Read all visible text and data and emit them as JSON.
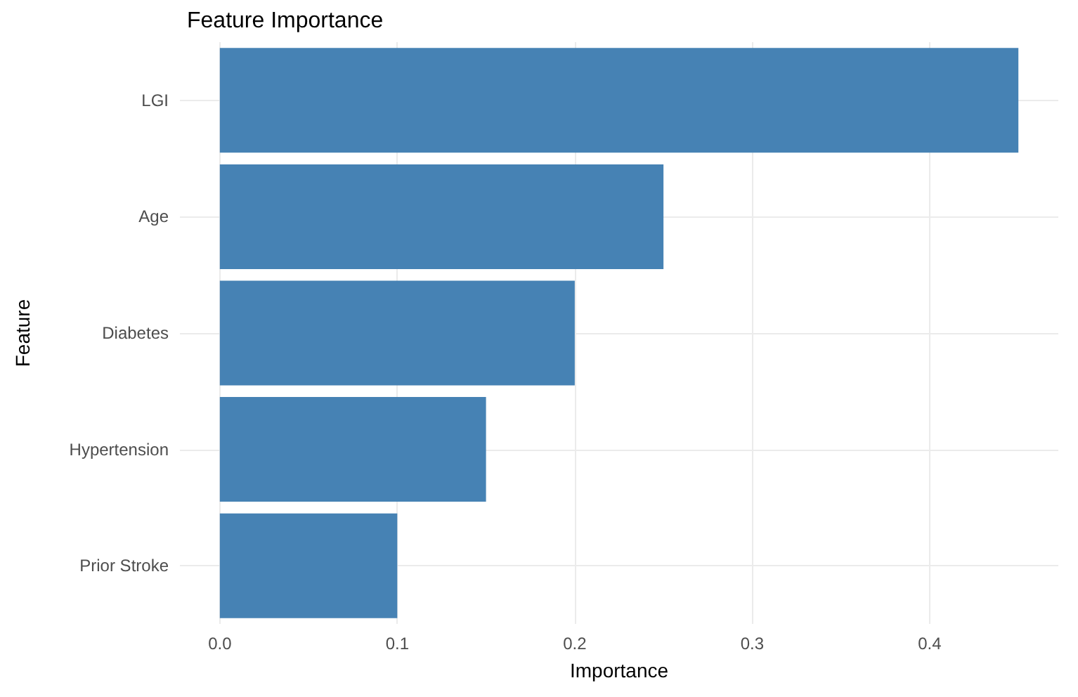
{
  "chart_data": {
    "type": "bar",
    "orientation": "horizontal",
    "title": "Feature Importance",
    "xlabel": "Importance",
    "ylabel": "Feature",
    "categories": [
      "LGI",
      "Age",
      "Diabetes",
      "Hypertension",
      "Prior Stroke"
    ],
    "values": [
      0.45,
      0.25,
      0.2,
      0.15,
      0.1
    ],
    "color": "#4682b4",
    "xlim": [
      -0.0225,
      0.4725
    ],
    "xticks": [
      {
        "value": 0,
        "label": "0.0"
      },
      {
        "value": 0.1,
        "label": "0.1"
      },
      {
        "value": 0.2,
        "label": "0.2"
      },
      {
        "value": 0.3,
        "label": "0.3"
      },
      {
        "value": 0.4,
        "label": "0.4"
      }
    ],
    "grid": true
  }
}
